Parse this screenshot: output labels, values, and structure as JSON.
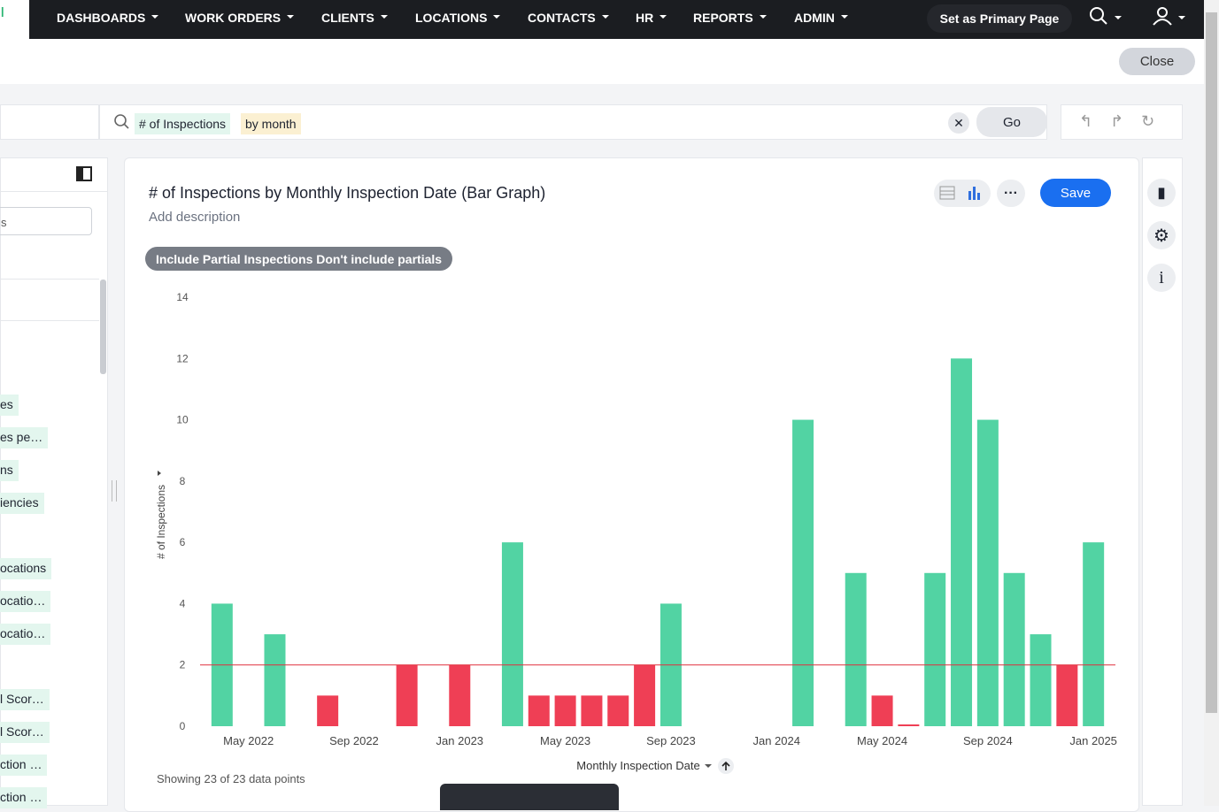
{
  "nav": {
    "items": [
      "DASHBOARDS",
      "WORK ORDERS",
      "CLIENTS",
      "LOCATIONS",
      "CONTACTS",
      "HR",
      "REPORTS",
      "ADMIN"
    ],
    "primary_button": "Set as Primary Page"
  },
  "close_button": "Close",
  "search": {
    "tokens": [
      "# of Inspections",
      "by month"
    ],
    "go_button": "Go"
  },
  "sidebar": {
    "input": "s",
    "items": [
      "es",
      "es pe…",
      "ns",
      "iencies",
      "ocations",
      "ocatio…",
      "ocatio…",
      "l Scor…",
      "l Scor…",
      "ction …",
      "ction …"
    ]
  },
  "card": {
    "description": "Add description",
    "filter_chip": "Include Partial Inspections Don't include partials",
    "save_button": "Save",
    "footer": "Showing 23 of 23 data points"
  },
  "chart_data": {
    "type": "bar",
    "title": "# of Inspections by Monthly Inspection Date (Bar Graph)",
    "x_label": "Monthly Inspection Date",
    "y_label": "# of Inspections",
    "x": [
      "2022-04",
      "2022-06",
      "2022-08",
      "2022-11",
      "2023-01",
      "2023-03",
      "2023-04",
      "2023-05",
      "2023-06",
      "2023-07",
      "2023-08",
      "2023-09",
      "2024-02",
      "2024-04",
      "2024-05",
      "2024-06",
      "2024-07",
      "2024-08",
      "2024-09",
      "2024-10",
      "2024-11",
      "2024-12",
      "2025-01"
    ],
    "values": [
      4,
      3,
      1,
      2,
      2,
      6,
      1,
      1,
      1,
      1,
      2,
      4,
      10,
      5,
      1,
      0,
      5,
      12,
      10,
      5,
      3,
      2,
      6
    ],
    "xlim": [
      "2022-03",
      "2025-02"
    ],
    "xticks": [
      {
        "value": "2022-05",
        "label": "May 2022"
      },
      {
        "value": "2022-09",
        "label": "Sep 2022"
      },
      {
        "value": "2023-01",
        "label": "Jan 2023"
      },
      {
        "value": "2023-05",
        "label": "May 2023"
      },
      {
        "value": "2023-09",
        "label": "Sep 2023"
      },
      {
        "value": "2024-01",
        "label": "Jan 2024"
      },
      {
        "value": "2024-05",
        "label": "May 2024"
      },
      {
        "value": "2024-09",
        "label": "Sep 2024"
      },
      {
        "value": "2025-01",
        "label": "Jan 2025"
      }
    ],
    "ylim": [
      0,
      14
    ],
    "yticks": [
      0,
      2,
      4,
      6,
      8,
      10,
      12,
      14
    ],
    "reference_line": 2,
    "reference_color": "#e0303f",
    "above_color": "#52d3a3",
    "below_color": "#ef3f55"
  }
}
